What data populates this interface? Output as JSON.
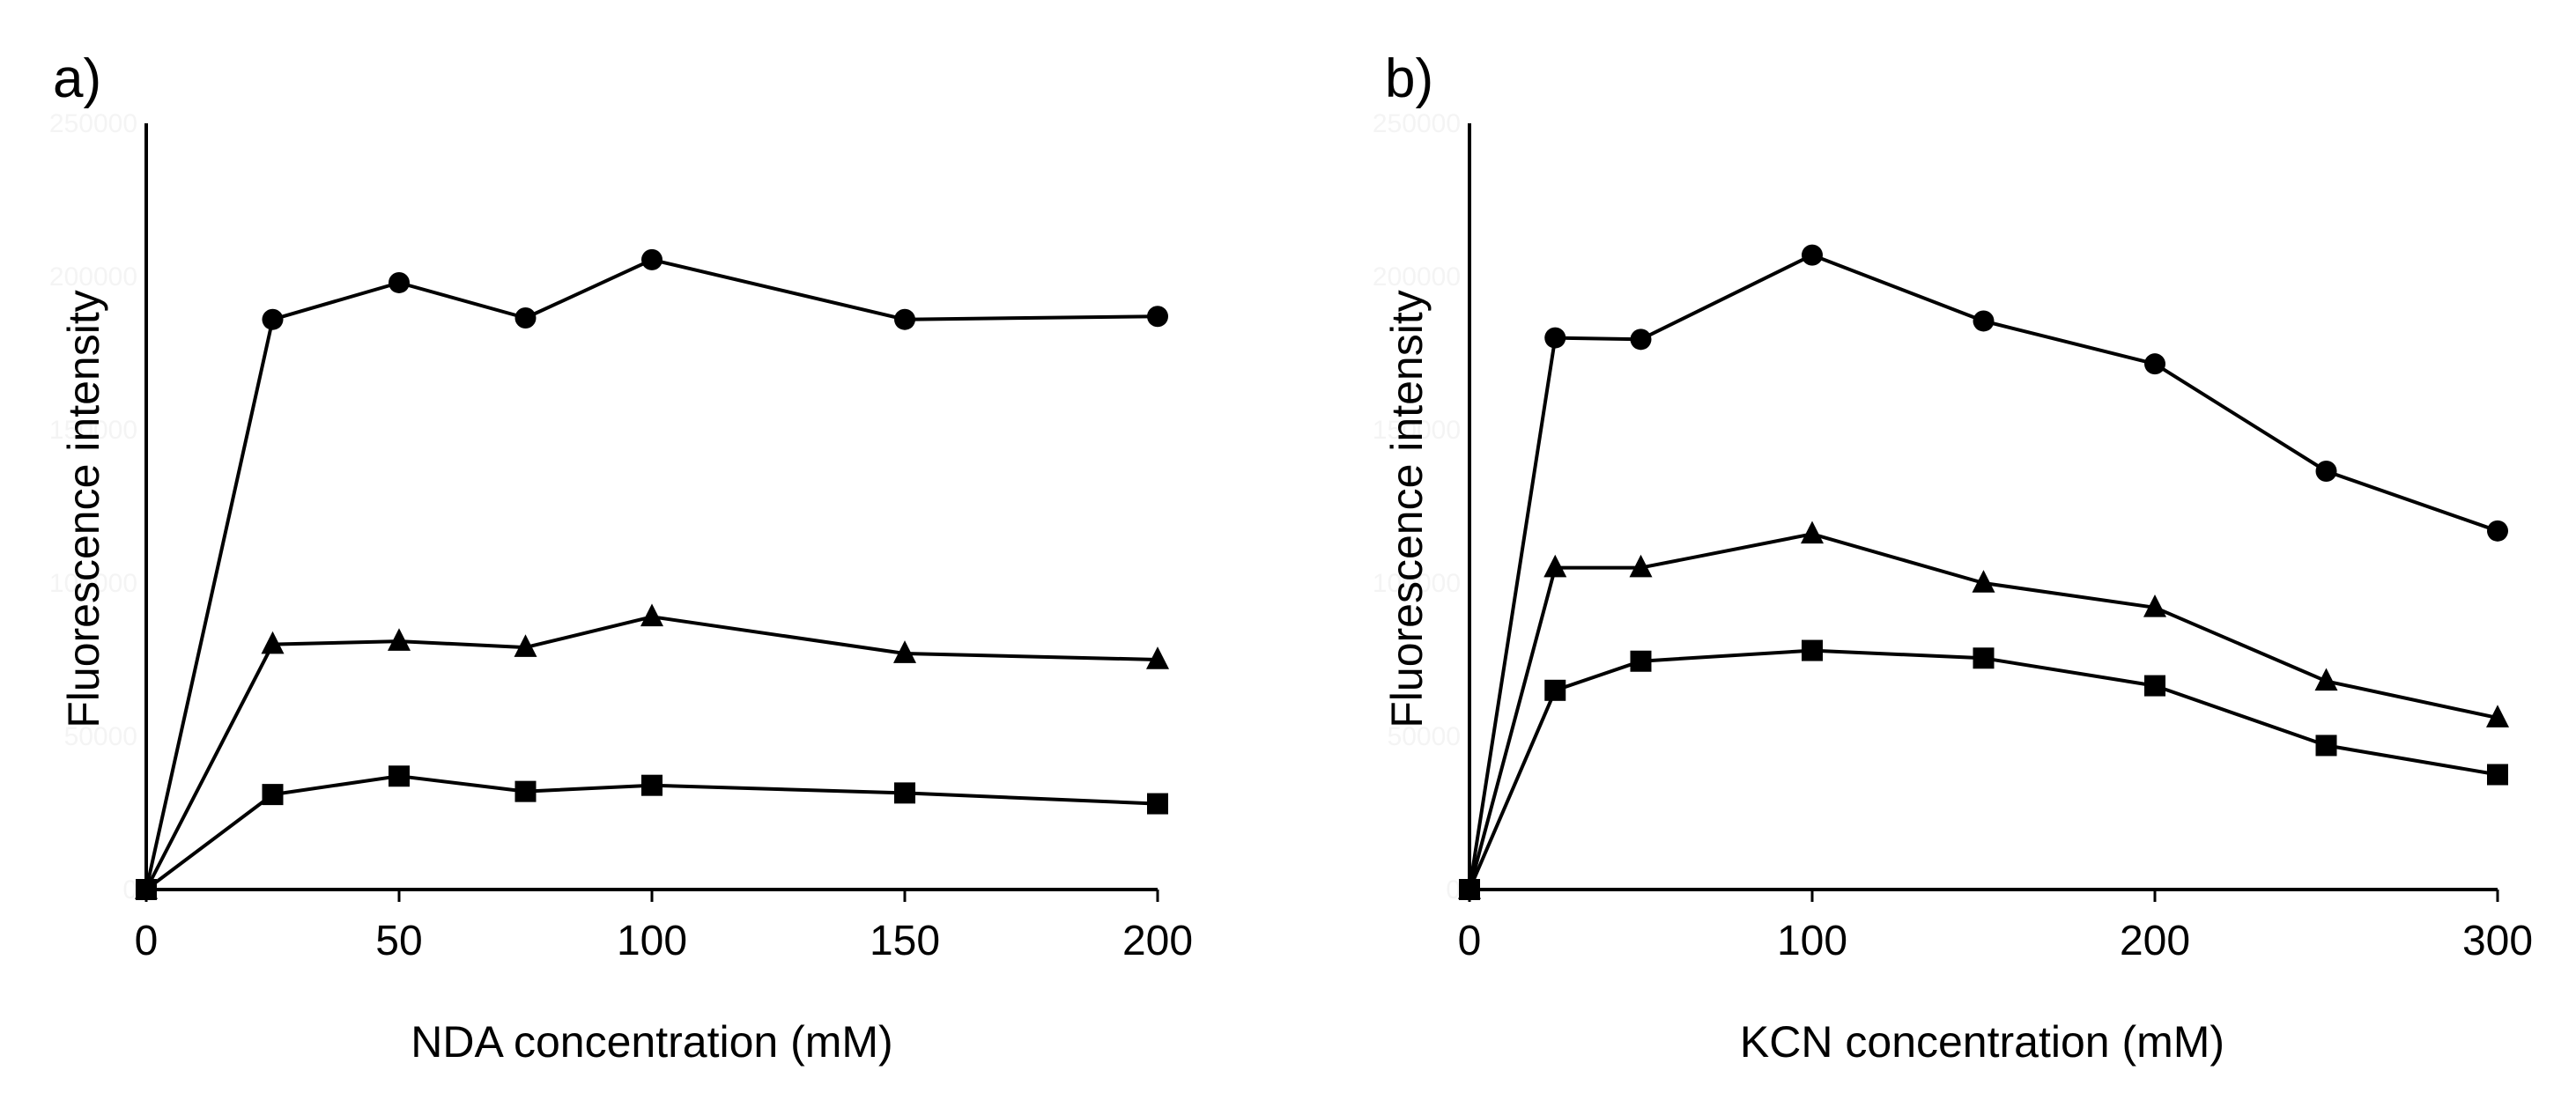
{
  "chart_data": [
    {
      "type": "line",
      "panel_label": "a)",
      "xlabel": "NDA concentration (mM)",
      "ylabel": "Fluorescence intensity",
      "xlim": [
        0,
        200
      ],
      "ylim": [
        0,
        250000
      ],
      "x_ticks": [
        "0",
        "50",
        "100",
        "150",
        "200"
      ],
      "y_ticks": [
        "0",
        "50000",
        "100000",
        "150000",
        "200000",
        "250000"
      ],
      "grid": false,
      "series": [
        {
          "name": "circle-series",
          "marker": "circle",
          "x": [
            0,
            25,
            50,
            75,
            100,
            150,
            200
          ],
          "y": [
            0,
            186000,
            198000,
            186500,
            205500,
            186000,
            187000
          ]
        },
        {
          "name": "triangle-series",
          "marker": "triangle",
          "x": [
            0,
            25,
            50,
            75,
            100,
            150,
            200
          ],
          "y": [
            0,
            80000,
            81000,
            79000,
            89000,
            77000,
            75000
          ]
        },
        {
          "name": "square-series",
          "marker": "square",
          "x": [
            0,
            25,
            50,
            75,
            100,
            150,
            200
          ],
          "y": [
            0,
            31000,
            37000,
            32000,
            34000,
            31500,
            28000
          ]
        }
      ]
    },
    {
      "type": "line",
      "panel_label": "b)",
      "xlabel": "KCN concentration (mM)",
      "ylabel": "Fluorescence intensity",
      "xlim": [
        0,
        300
      ],
      "ylim": [
        0,
        250000
      ],
      "x_ticks": [
        "0",
        "100",
        "200",
        "300"
      ],
      "y_ticks": [
        "0",
        "50000",
        "100000",
        "150000",
        "200000",
        "250000"
      ],
      "grid": false,
      "series": [
        {
          "name": "circle-series",
          "marker": "circle",
          "x": [
            0,
            25,
            50,
            100,
            150,
            200,
            250,
            300
          ],
          "y": [
            0,
            180000,
            179500,
            207000,
            185500,
            171500,
            136500,
            117000
          ]
        },
        {
          "name": "triangle-series",
          "marker": "triangle",
          "x": [
            0,
            25,
            50,
            100,
            150,
            200,
            250,
            300
          ],
          "y": [
            0,
            105000,
            105000,
            116000,
            100000,
            92000,
            68000,
            56000
          ]
        },
        {
          "name": "square-series",
          "marker": "square",
          "x": [
            0,
            25,
            50,
            100,
            150,
            200,
            250,
            300
          ],
          "y": [
            0,
            65000,
            74500,
            78000,
            75500,
            66500,
            47000,
            37500
          ]
        }
      ]
    }
  ]
}
